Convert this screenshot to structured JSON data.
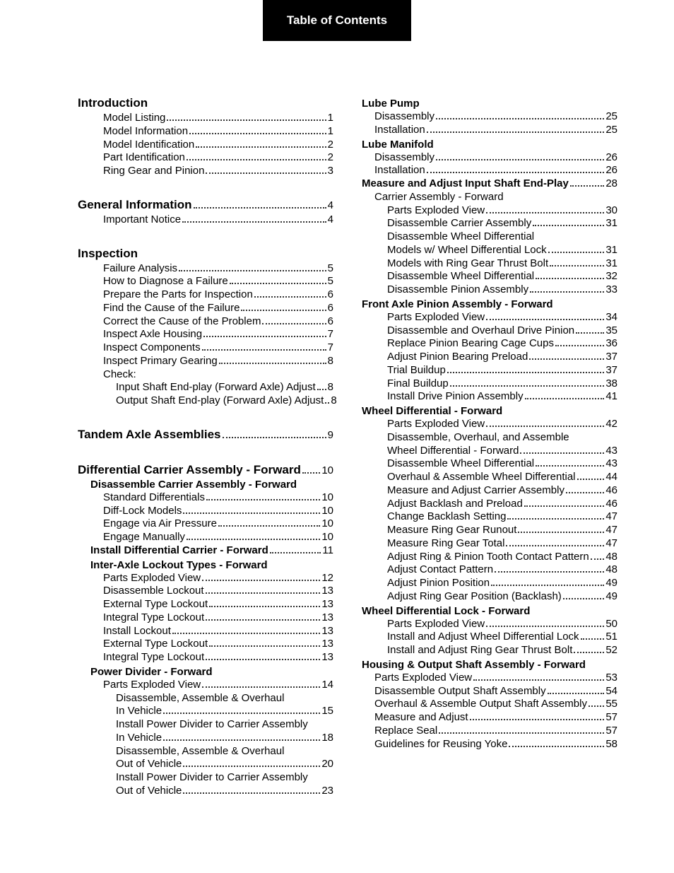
{
  "header": "Table of Contents",
  "left": [
    {
      "type": "section",
      "label": "Introduction"
    },
    {
      "type": "entry",
      "indent": 2,
      "label": "Model Listing",
      "pg": "1"
    },
    {
      "type": "entry",
      "indent": 2,
      "label": "Model Information",
      "pg": "1"
    },
    {
      "type": "entry",
      "indent": 2,
      "label": "Model Identification",
      "pg": "2"
    },
    {
      "type": "entry",
      "indent": 2,
      "label": "Part Identification",
      "pg": "2"
    },
    {
      "type": "entry",
      "indent": 2,
      "label": "Ring Gear and Pinion",
      "pg": "3"
    },
    {
      "type": "gap"
    },
    {
      "type": "section-pg",
      "label": "General Information",
      "pg": "4"
    },
    {
      "type": "entry",
      "indent": 2,
      "label": "Important Notice",
      "pg": "4"
    },
    {
      "type": "gap"
    },
    {
      "type": "section",
      "label": "Inspection"
    },
    {
      "type": "entry",
      "indent": 2,
      "label": "Failure Analysis",
      "pg": "5"
    },
    {
      "type": "entry",
      "indent": 2,
      "label": "How to Diagnose a Failure",
      "pg": "5"
    },
    {
      "type": "entry",
      "indent": 2,
      "label": "Prepare the Parts for Inspection",
      "pg": "6"
    },
    {
      "type": "entry",
      "indent": 2,
      "label": "Find the Cause of the Failure",
      "pg": "6"
    },
    {
      "type": "entry",
      "indent": 2,
      "label": "Correct the Cause of the Problem",
      "pg": "6"
    },
    {
      "type": "entry",
      "indent": 2,
      "label": "Inspect Axle Housing",
      "pg": "7"
    },
    {
      "type": "entry",
      "indent": 2,
      "label": "Inspect Components",
      "pg": "7"
    },
    {
      "type": "entry",
      "indent": 2,
      "label": "Inspect Primary Gearing",
      "pg": "8"
    },
    {
      "type": "plain",
      "indent": 2,
      "label": "Check:"
    },
    {
      "type": "entry",
      "indent": 3,
      "label": "Input Shaft End-play (Forward Axle) Adjust",
      "pg": "8"
    },
    {
      "type": "entry",
      "indent": 3,
      "label": "Output Shaft End-play (Forward Axle) Adjust",
      "pg": "8"
    },
    {
      "type": "gap"
    },
    {
      "type": "section-pg",
      "label": "Tandem Axle Assemblies",
      "pg": "9"
    },
    {
      "type": "gap"
    },
    {
      "type": "section-pg",
      "label": "Differential Carrier Assembly - Forward",
      "pg": "10"
    },
    {
      "type": "sub",
      "indent": 1,
      "label": "Disassemble Carrier Assembly - Forward"
    },
    {
      "type": "entry",
      "indent": 2,
      "label": "Standard Differentials",
      "pg": "10"
    },
    {
      "type": "entry",
      "indent": 2,
      "label": "Diff-Lock Models",
      "pg": "10"
    },
    {
      "type": "entry",
      "indent": 2,
      "label": "Engage via Air Pressure",
      "pg": "10"
    },
    {
      "type": "entry",
      "indent": 2,
      "label": "Engage Manually",
      "pg": "10"
    },
    {
      "type": "sub-pg",
      "indent": 1,
      "label": "Install Differential Carrier - Forward",
      "pg": "11"
    },
    {
      "type": "sub",
      "indent": 1,
      "label": "Inter-Axle Lockout Types - Forward"
    },
    {
      "type": "entry",
      "indent": 2,
      "label": "Parts Exploded View",
      "pg": "12"
    },
    {
      "type": "entry",
      "indent": 2,
      "label": "Disassemble Lockout",
      "pg": "13"
    },
    {
      "type": "entry",
      "indent": 2,
      "label": "External Type Lockout",
      "pg": "13"
    },
    {
      "type": "entry",
      "indent": 2,
      "label": "Integral Type Lockout",
      "pg": "13"
    },
    {
      "type": "entry",
      "indent": 2,
      "label": "Install Lockout",
      "pg": "13"
    },
    {
      "type": "entry",
      "indent": 2,
      "label": "External Type Lockout",
      "pg": "13"
    },
    {
      "type": "entry",
      "indent": 2,
      "label": "Integral Type Lockout",
      "pg": "13"
    },
    {
      "type": "sub",
      "indent": 1,
      "label": "Power Divider - Forward"
    },
    {
      "type": "entry",
      "indent": 2,
      "label": "Parts Exploded View",
      "pg": "14"
    },
    {
      "type": "plain",
      "indent": 3,
      "label": "Disassemble, Assemble & Overhaul"
    },
    {
      "type": "entry",
      "indent": 3,
      "label": "   In Vehicle",
      "pg": "15"
    },
    {
      "type": "plain",
      "indent": 3,
      "label": "Install Power Divider to Carrier Assembly"
    },
    {
      "type": "entry",
      "indent": 3,
      "label": "   In Vehicle",
      "pg": "18"
    },
    {
      "type": "plain",
      "indent": 3,
      "label": "Disassemble, Assemble & Overhaul"
    },
    {
      "type": "entry",
      "indent": 3,
      "label": "   Out of Vehicle",
      "pg": " 20"
    },
    {
      "type": "plain",
      "indent": 3,
      "label": "Install Power Divider to Carrier Assembly"
    },
    {
      "type": "entry",
      "indent": 3,
      "label": "   Out of Vehicle",
      "pg": "23"
    }
  ],
  "right": [
    {
      "type": "sub",
      "indent": 0,
      "label": "Lube Pump"
    },
    {
      "type": "entry",
      "indent": 1,
      "label": "Disassembly",
      "pg": "25"
    },
    {
      "type": "entry",
      "indent": 1,
      "label": "Installation",
      "pg": "25"
    },
    {
      "type": "sub",
      "indent": 0,
      "label": "Lube Manifold"
    },
    {
      "type": "entry",
      "indent": 1,
      "label": "Disassembly",
      "pg": " 26"
    },
    {
      "type": "entry",
      "indent": 1,
      "label": "Installation",
      "pg": " 26"
    },
    {
      "type": "sub-pg",
      "indent": 0,
      "label": "Measure and Adjust Input Shaft End-Play",
      "pg": "28"
    },
    {
      "type": "plain",
      "indent": 1,
      "label": "Carrier Assembly - Forward"
    },
    {
      "type": "entry",
      "indent": 2,
      "label": "Parts Exploded View",
      "pg": " 30"
    },
    {
      "type": "entry",
      "indent": 2,
      "label": "Disassemble Carrier Assembly",
      "pg": "31"
    },
    {
      "type": "plain",
      "indent": 2,
      "label": "Disassemble Wheel Differential"
    },
    {
      "type": "entry",
      "indent": 2,
      "label": "Models w/ Wheel Differential Lock",
      "pg": "31"
    },
    {
      "type": "entry",
      "indent": 2,
      "label": "Models with Ring Gear Thrust Bolt",
      "pg": "31"
    },
    {
      "type": "entry",
      "indent": 2,
      "label": "Disassemble Wheel Differential",
      "pg": "32"
    },
    {
      "type": "entry",
      "indent": 2,
      "label": "Disassemble Pinion Assembly",
      "pg": " 33"
    },
    {
      "type": "sub",
      "indent": 0,
      "label": "Front Axle Pinion Assembly - Forward"
    },
    {
      "type": "entry",
      "indent": 2,
      "label": "Parts Exploded View",
      "pg": " 34"
    },
    {
      "type": "entry",
      "indent": 2,
      "label": "Disassemble and Overhaul Drive Pinion",
      "pg": " 35"
    },
    {
      "type": "entry",
      "indent": 2,
      "label": "Replace Pinion Bearing Cage Cups",
      "pg": " 36"
    },
    {
      "type": "entry",
      "indent": 2,
      "label": "Adjust Pinion Bearing Preload",
      "pg": "37"
    },
    {
      "type": "entry",
      "indent": 2,
      "label": "Trial Buildup",
      "pg": "37"
    },
    {
      "type": "entry",
      "indent": 2,
      "label": "Final Buildup",
      "pg": " 38"
    },
    {
      "type": "entry",
      "indent": 2,
      "label": "Install Drive Pinion Assembly",
      "pg": "41"
    },
    {
      "type": "sub",
      "indent": 0,
      "label": "Wheel Differential - Forward"
    },
    {
      "type": "entry",
      "indent": 2,
      "label": "Parts Exploded View",
      "pg": "42"
    },
    {
      "type": "plain",
      "indent": 2,
      "label": "Disassemble, Overhaul, and Assemble"
    },
    {
      "type": "entry",
      "indent": 2,
      "label": "Wheel Differential - Forward",
      "pg": " 43"
    },
    {
      "type": "entry",
      "indent": 2,
      "label": "Disassemble Wheel Differential",
      "pg": " 43"
    },
    {
      "type": "entry",
      "indent": 2,
      "label": "Overhaul & Assemble Wheel Differential",
      "pg": " 44"
    },
    {
      "type": "entry",
      "indent": 2,
      "label": "Measure and Adjust Carrier Assembly",
      "pg": " 46"
    },
    {
      "type": "entry",
      "indent": 2,
      "label": "Adjust Backlash and Preload",
      "pg": " 46"
    },
    {
      "type": "entry",
      "indent": 2,
      "label": "Change Backlash Setting",
      "pg": "47"
    },
    {
      "type": "entry",
      "indent": 2,
      "label": "Measure Ring Gear Runout",
      "pg": "47"
    },
    {
      "type": "entry",
      "indent": 2,
      "label": "Measure Ring Gear Total",
      "pg": "47"
    },
    {
      "type": "entry",
      "indent": 2,
      "label": "Adjust Ring & Pinion Tooth Contact Pattern",
      "pg": " 48"
    },
    {
      "type": "entry",
      "indent": 2,
      "label": "Adjust Contact Pattern",
      "pg": " 48"
    },
    {
      "type": "entry",
      "indent": 2,
      "label": "Adjust Pinion Position",
      "pg": " 49"
    },
    {
      "type": "entry",
      "indent": 2,
      "label": "Adjust Ring Gear Position (Backlash)",
      "pg": " 49"
    },
    {
      "type": "sub",
      "indent": 0,
      "label": "Wheel Differential Lock - Forward"
    },
    {
      "type": "entry",
      "indent": 2,
      "label": "Parts Exploded View",
      "pg": " 50"
    },
    {
      "type": "entry",
      "indent": 2,
      "label": "Install and Adjust Wheel Differential Lock",
      "pg": "51"
    },
    {
      "type": "entry",
      "indent": 2,
      "label": "Install and Adjust Ring Gear Thrust Bolt",
      "pg": "52"
    },
    {
      "type": "sub",
      "indent": 0,
      "label": "Housing & Output Shaft Assembly - Forward"
    },
    {
      "type": "entry",
      "indent": 1,
      "label": "Parts Exploded View",
      "pg": " 53"
    },
    {
      "type": "entry",
      "indent": 1,
      "label": "Disassemble Output Shaft Assembly",
      "pg": " 54"
    },
    {
      "type": "entry",
      "indent": 1,
      "label": "Overhaul & Assemble Output Shaft Assembly",
      "pg": " 55"
    },
    {
      "type": "entry",
      "indent": 1,
      "label": "Measure and Adjust",
      "pg": "57"
    },
    {
      "type": "entry",
      "indent": 1,
      "label": "Replace Seal",
      "pg": "57"
    },
    {
      "type": "entry",
      "indent": 1,
      "label": "Guidelines for Reusing Yoke",
      "pg": " 58"
    }
  ]
}
